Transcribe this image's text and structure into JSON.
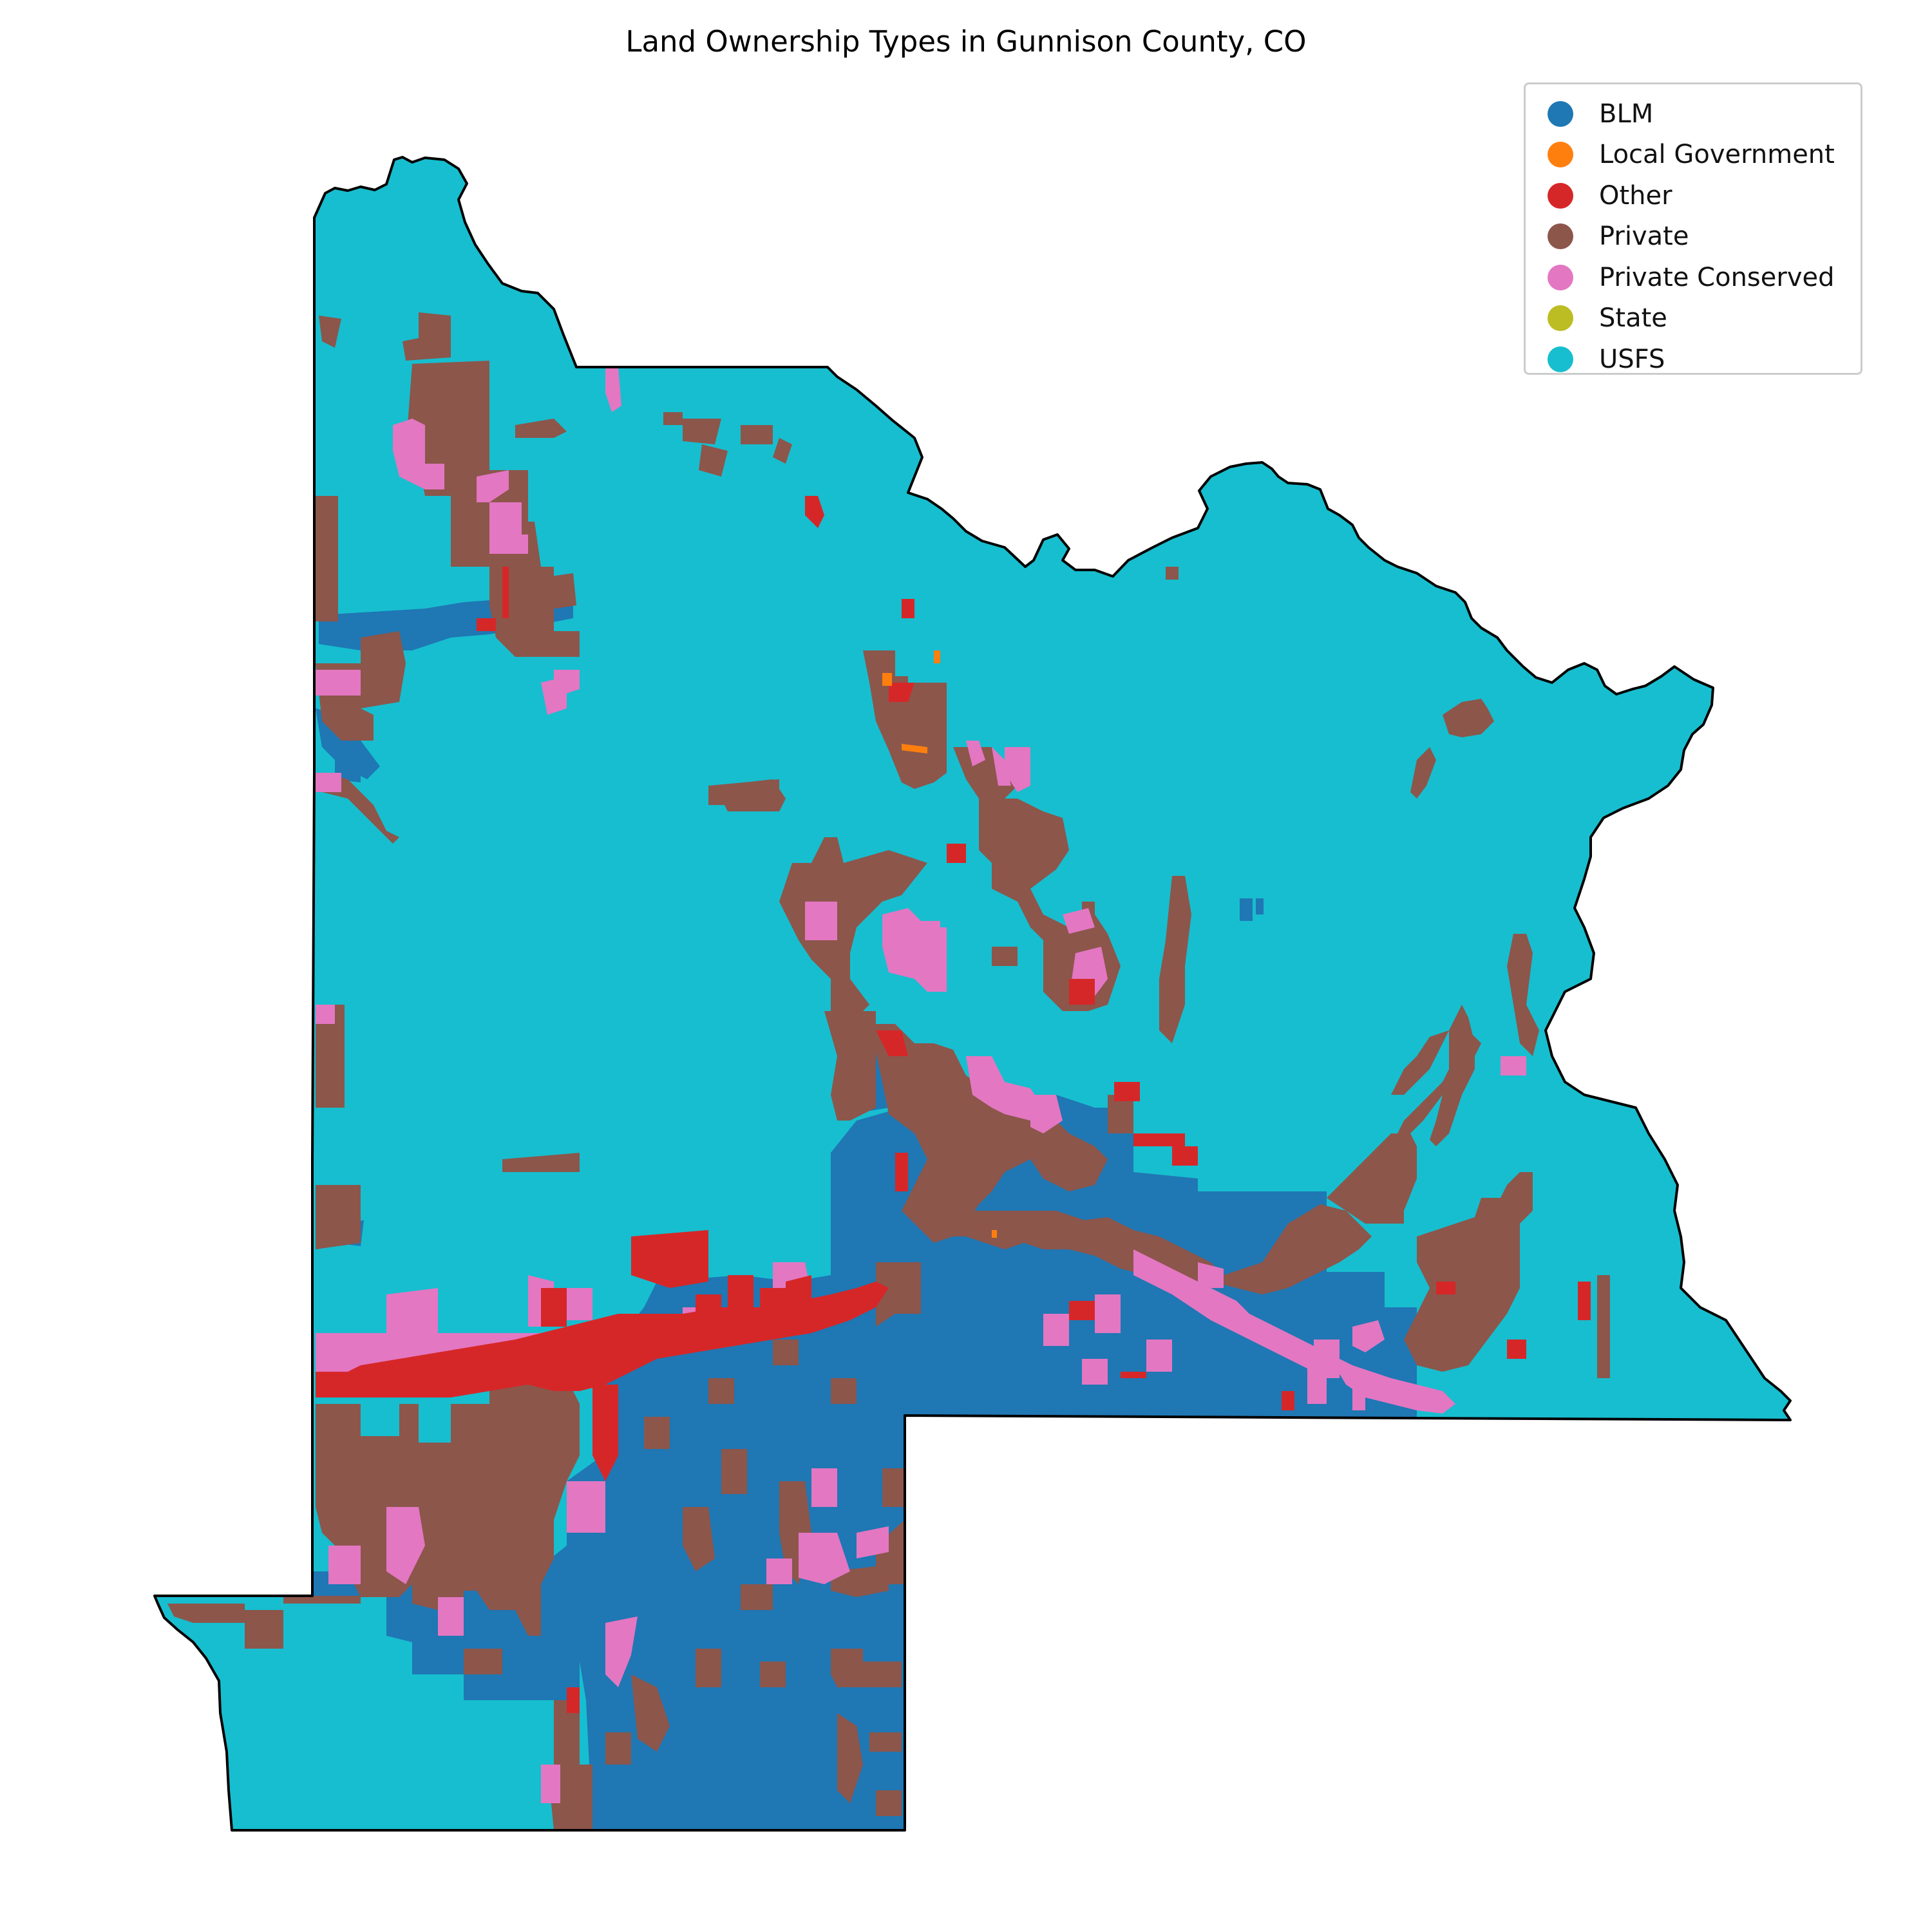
{
  "title": "Land Ownership Types in Gunnison County, CO",
  "legend": [
    {
      "label": "BLM",
      "color": "#1f77b4"
    },
    {
      "label": "Local Government",
      "color": "#ff7f0e"
    },
    {
      "label": "Other",
      "color": "#d62728"
    },
    {
      "label": "Private",
      "color": "#8c564b"
    },
    {
      "label": "Private Conserved",
      "color": "#e377c2"
    },
    {
      "label": "State",
      "color": "#bcbd22"
    },
    {
      "label": "USFS",
      "color": "#17becf"
    }
  ]
}
